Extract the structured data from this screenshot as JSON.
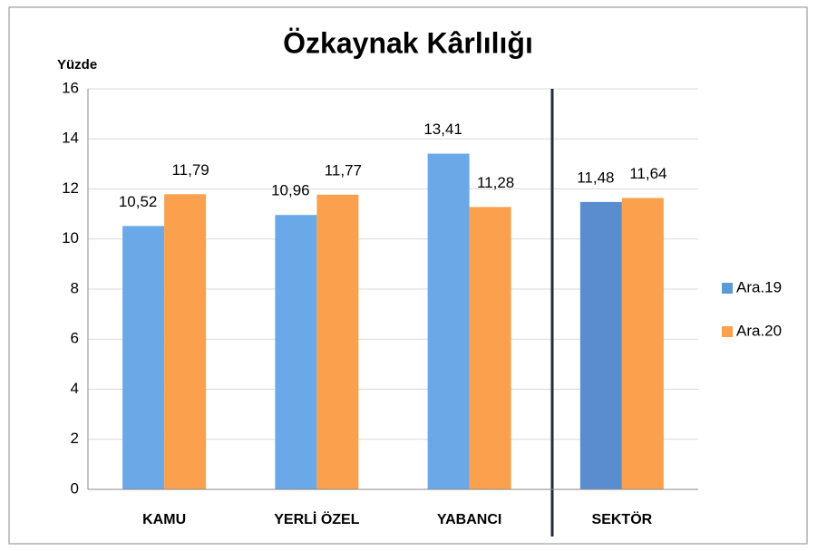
{
  "chart_data": {
    "type": "bar",
    "title": "Özkaynak Kârlılığı",
    "y_label": "Yüzde",
    "categories": [
      "KAMU",
      "YERLİ ÖZEL",
      "YABANCI",
      "SEKTÖR"
    ],
    "series": [
      {
        "name": "Ara.19",
        "color": "#5b9bd5",
        "colors": [
          "#6aa8e8",
          "#6aa8e8",
          "#6aa8e8",
          "#5a8dd0"
        ],
        "values": [
          10.52,
          10.96,
          13.41,
          11.48
        ],
        "value_labels": [
          "10,52",
          "10,96",
          "13,41",
          "11,48"
        ]
      },
      {
        "name": "Ara.20",
        "color": "#fba04d",
        "colors": [
          "#fba04d",
          "#fba04d",
          "#fba04d",
          "#fba04d"
        ],
        "values": [
          11.79,
          11.77,
          11.28,
          11.64
        ],
        "value_labels": [
          "11,79",
          "11,77",
          "11,28",
          "11,64"
        ]
      }
    ],
    "ylim": [
      0,
      16
    ],
    "yticks": [
      0,
      2,
      4,
      6,
      8,
      10,
      12,
      14,
      16
    ],
    "grid": true,
    "legend": "right"
  }
}
